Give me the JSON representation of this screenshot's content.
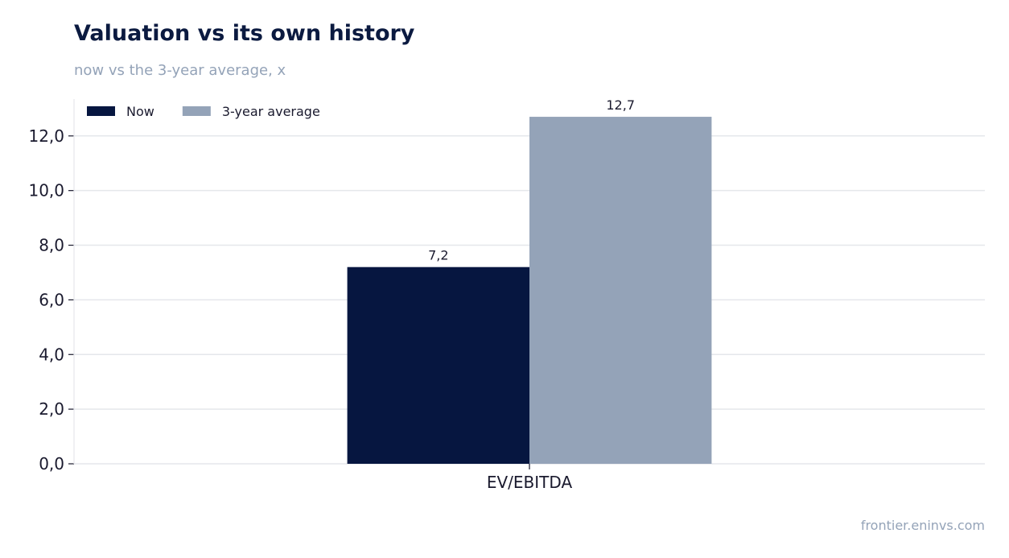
{
  "title": "Valuation vs its own history",
  "subtitle": "now vs the 3-year average, x",
  "source": "frontier.eninvs.com",
  "chart_data": {
    "type": "bar",
    "categories": [
      "EV/EBITDA"
    ],
    "series": [
      {
        "name": "Now",
        "values": [
          7.2
        ],
        "color": "#061640",
        "labels": [
          "7,2"
        ]
      },
      {
        "name": "3-year average",
        "values": [
          12.7
        ],
        "color": "#94a3b8",
        "labels": [
          "12,7"
        ]
      }
    ],
    "ylim": [
      0,
      13.35
    ],
    "yticks": [
      0,
      2,
      4,
      6,
      8,
      10,
      12
    ],
    "ytick_labels": [
      "0,0",
      "2,0",
      "4,0",
      "6,0",
      "8,0",
      "10,0",
      "12,0"
    ],
    "grid": true,
    "legend": "top-left",
    "xlabel": "",
    "ylabel": ""
  }
}
